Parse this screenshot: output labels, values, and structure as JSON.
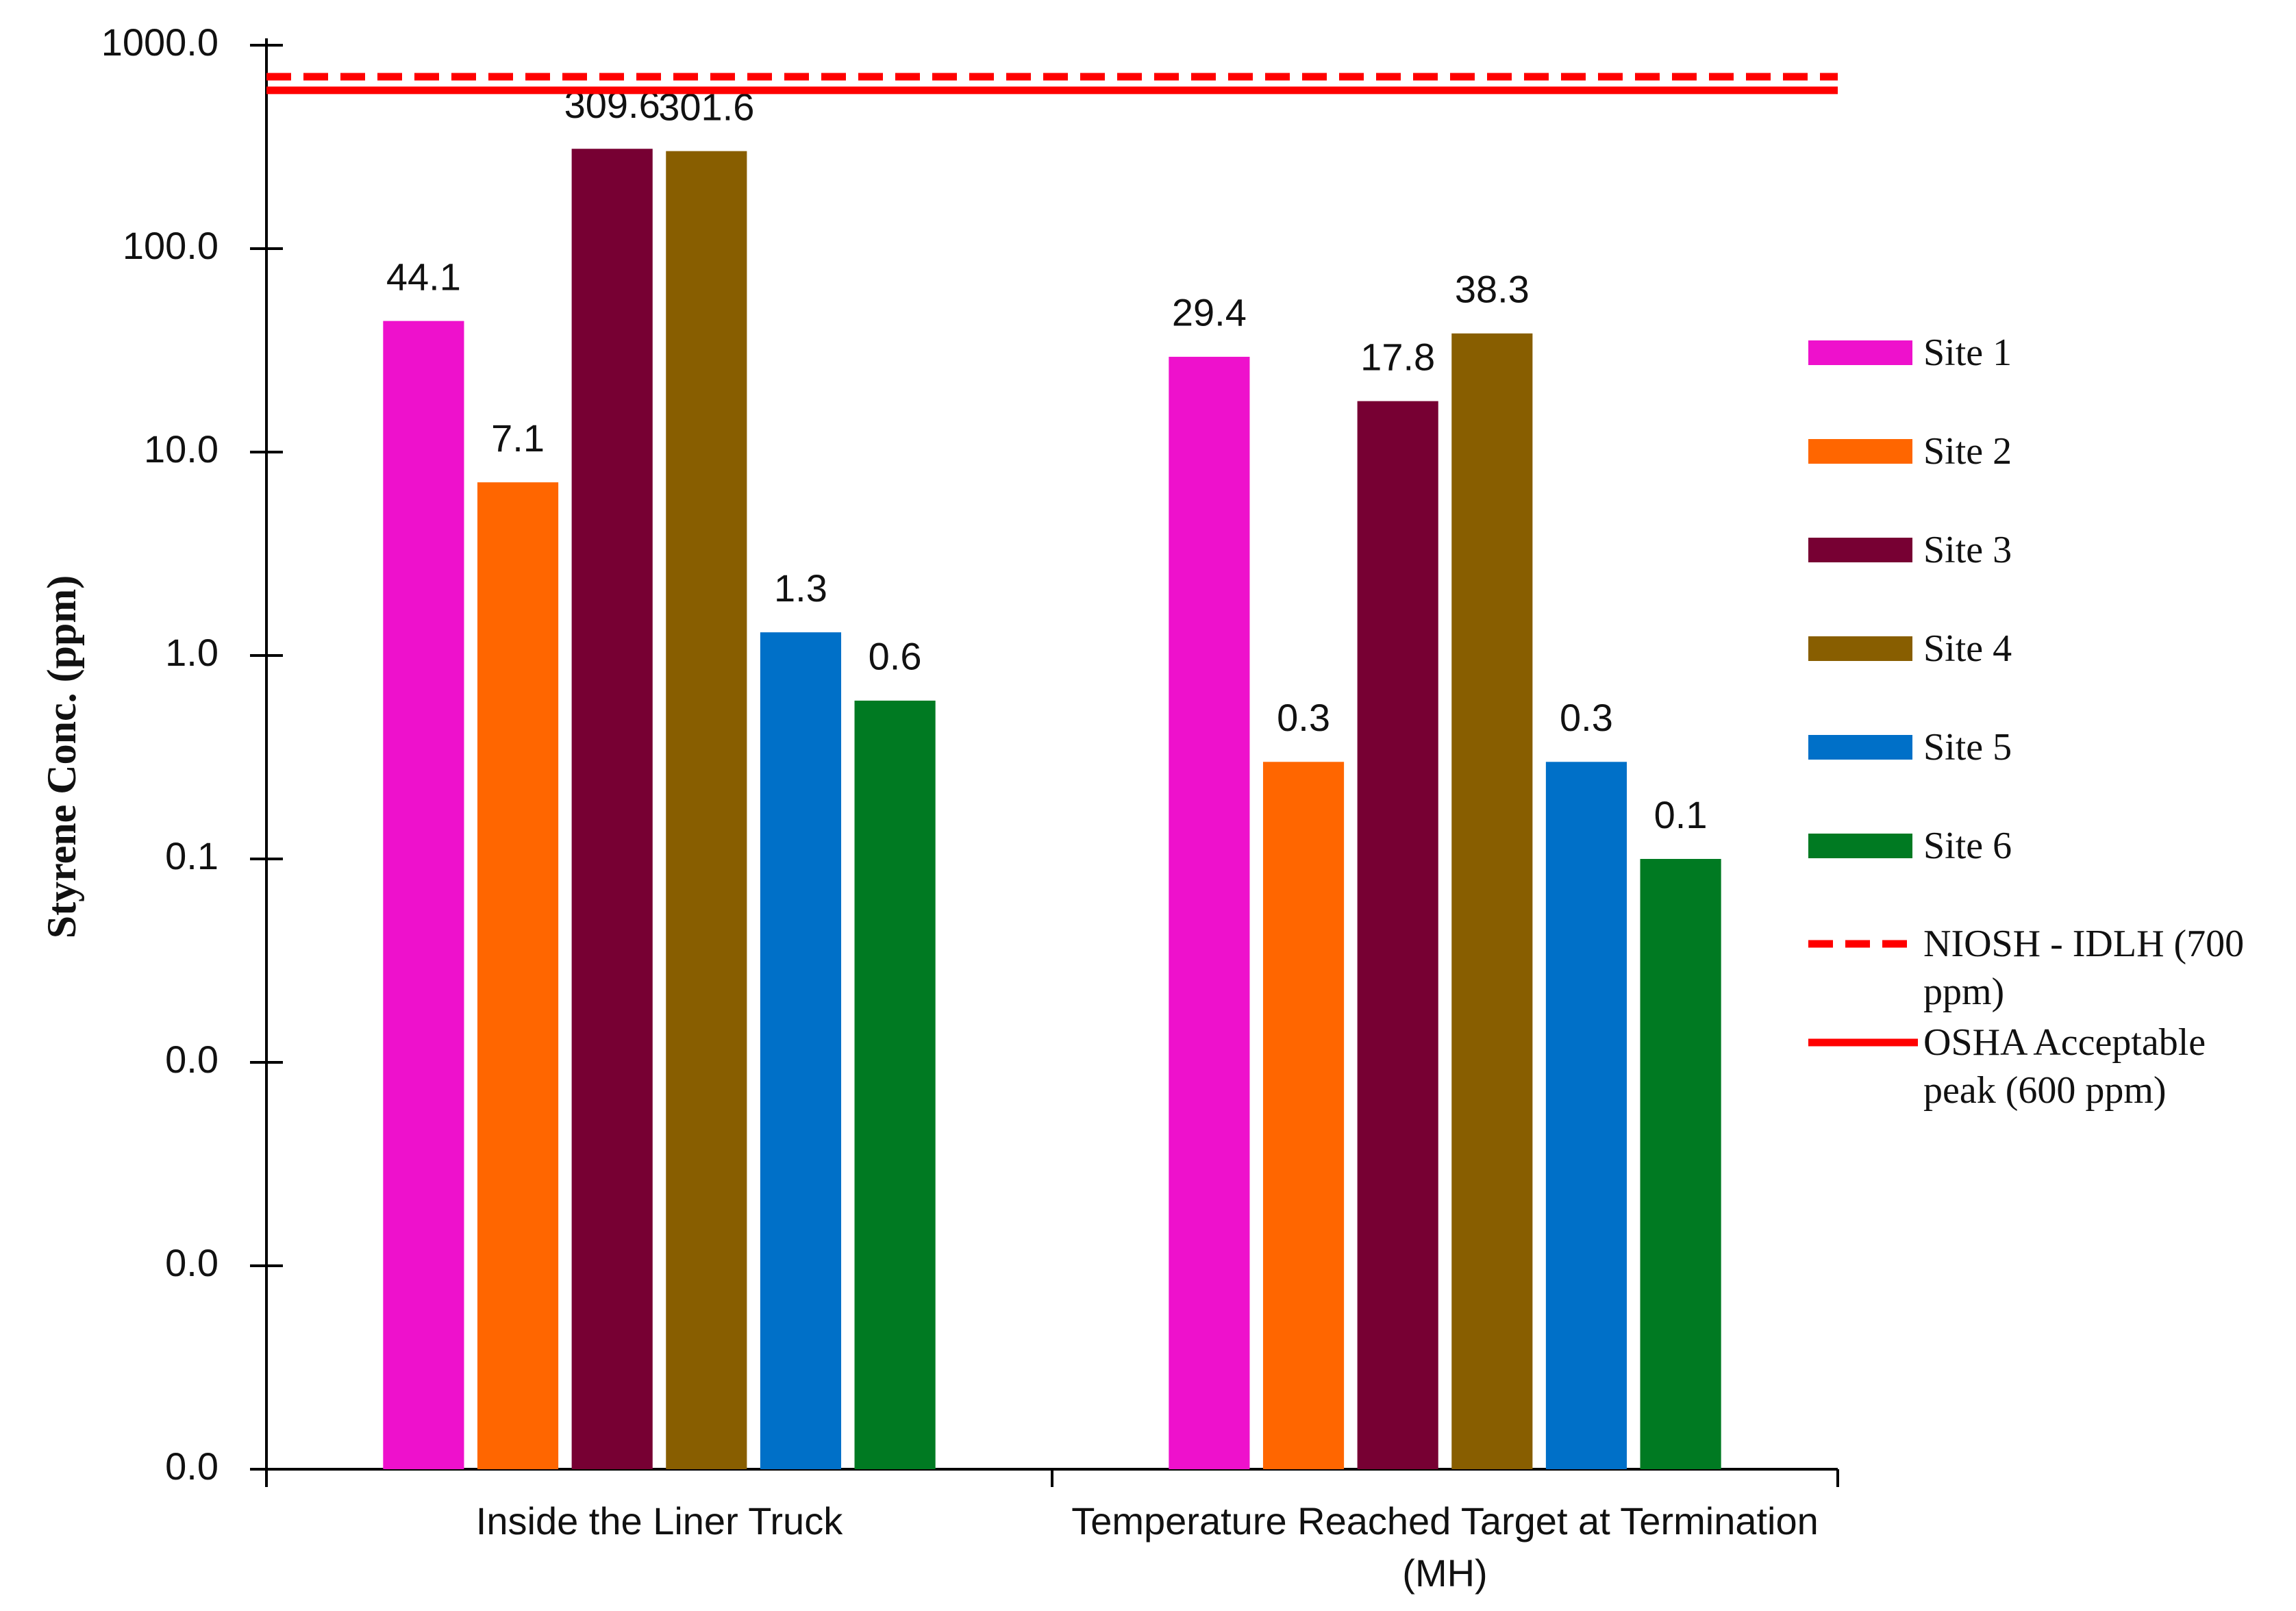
{
  "chart_data": {
    "type": "bar",
    "y_label": "Styrene Conc. (ppm)",
    "log_scale": true,
    "grid": false,
    "categories": [
      "Inside the Liner Truck",
      "Temperature Reached Target at Termination (MH)"
    ],
    "series": [
      {
        "name": "Site 1",
        "color": "#ee11cc",
        "values": [
          44.1,
          29.4
        ]
      },
      {
        "name": "Site 2",
        "color": "#ff6600",
        "values": [
          7.1,
          0.3
        ]
      },
      {
        "name": "Site 3",
        "color": "#770033",
        "values": [
          309.6,
          17.8
        ]
      },
      {
        "name": "Site 4",
        "color": "#885e00",
        "values": [
          301.6,
          38.3
        ]
      },
      {
        "name": "Site 5",
        "color": "#0070c8",
        "values": [
          1.3,
          0.3
        ]
      },
      {
        "name": "Site 6",
        "color": "#007a22",
        "values": [
          0.6,
          0.1
        ]
      }
    ],
    "reference_lines": [
      {
        "name": "NIOSH - IDLH (700 ppm)",
        "value": 700,
        "color": "#ff0000",
        "dashed": true
      },
      {
        "name": "OSHA Acceptable peak (600 ppm)",
        "value": 600,
        "color": "#ff0000",
        "dashed": false
      }
    ],
    "ylim": [
      0.0001,
      1000
    ],
    "yticks": [
      {
        "value": 0.0001,
        "label": "0.0"
      },
      {
        "value": 0.001,
        "label": "0.0"
      },
      {
        "value": 0.01,
        "label": "0.0"
      },
      0.1,
      {
        "value": 1,
        "label": "1.0"
      },
      {
        "value": 10,
        "label": "10.0"
      },
      {
        "value": 100,
        "label": "100.0"
      },
      {
        "value": 1000,
        "label": "1000.0"
      }
    ],
    "legend_position": "right"
  }
}
